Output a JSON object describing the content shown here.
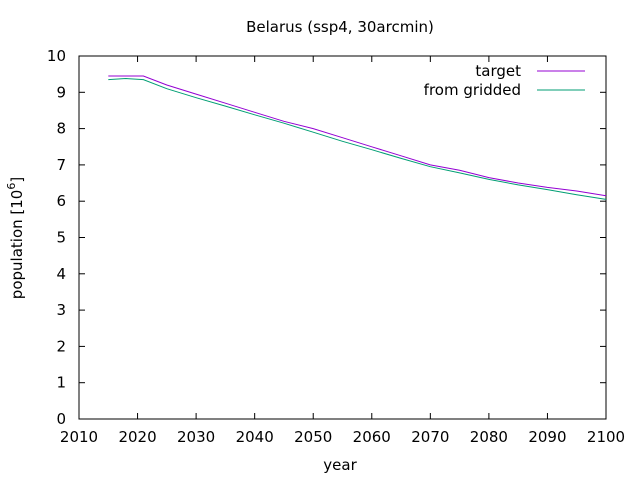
{
  "chart_data": {
    "type": "line",
    "title": "Belarus (ssp4, 30arcmin)",
    "xlabel": "year",
    "ylabel_base": "population [10",
    "ylabel_exp": "6",
    "ylabel_close": "]",
    "xlim": [
      2010,
      2100
    ],
    "ylim": [
      0,
      10
    ],
    "x_ticks": [
      2010,
      2020,
      2030,
      2040,
      2050,
      2060,
      2070,
      2080,
      2090,
      2100
    ],
    "y_ticks": [
      0,
      1,
      2,
      3,
      4,
      5,
      6,
      7,
      8,
      9,
      10
    ],
    "legend_position": "top-right",
    "grid": false,
    "series": [
      {
        "name": "target",
        "color": "#9400d3",
        "x": [
          2015,
          2020,
          2021,
          2025,
          2030,
          2035,
          2040,
          2045,
          2050,
          2055,
          2060,
          2065,
          2070,
          2075,
          2080,
          2085,
          2090,
          2095,
          2100
        ],
        "y": [
          9.45,
          9.45,
          9.45,
          9.2,
          8.95,
          8.7,
          8.45,
          8.2,
          8.0,
          7.75,
          7.5,
          7.25,
          7.0,
          6.85,
          6.65,
          6.5,
          6.38,
          6.28,
          6.15
        ]
      },
      {
        "name": "from gridded",
        "color": "#009e73",
        "x": [
          2015,
          2018,
          2021,
          2025,
          2030,
          2035,
          2040,
          2045,
          2050,
          2055,
          2060,
          2065,
          2070,
          2075,
          2080,
          2085,
          2090,
          2095,
          2100
        ],
        "y": [
          9.35,
          9.38,
          9.35,
          9.1,
          8.85,
          8.62,
          8.38,
          8.15,
          7.9,
          7.65,
          7.42,
          7.18,
          6.95,
          6.78,
          6.6,
          6.45,
          6.32,
          6.18,
          6.05
        ]
      }
    ]
  }
}
